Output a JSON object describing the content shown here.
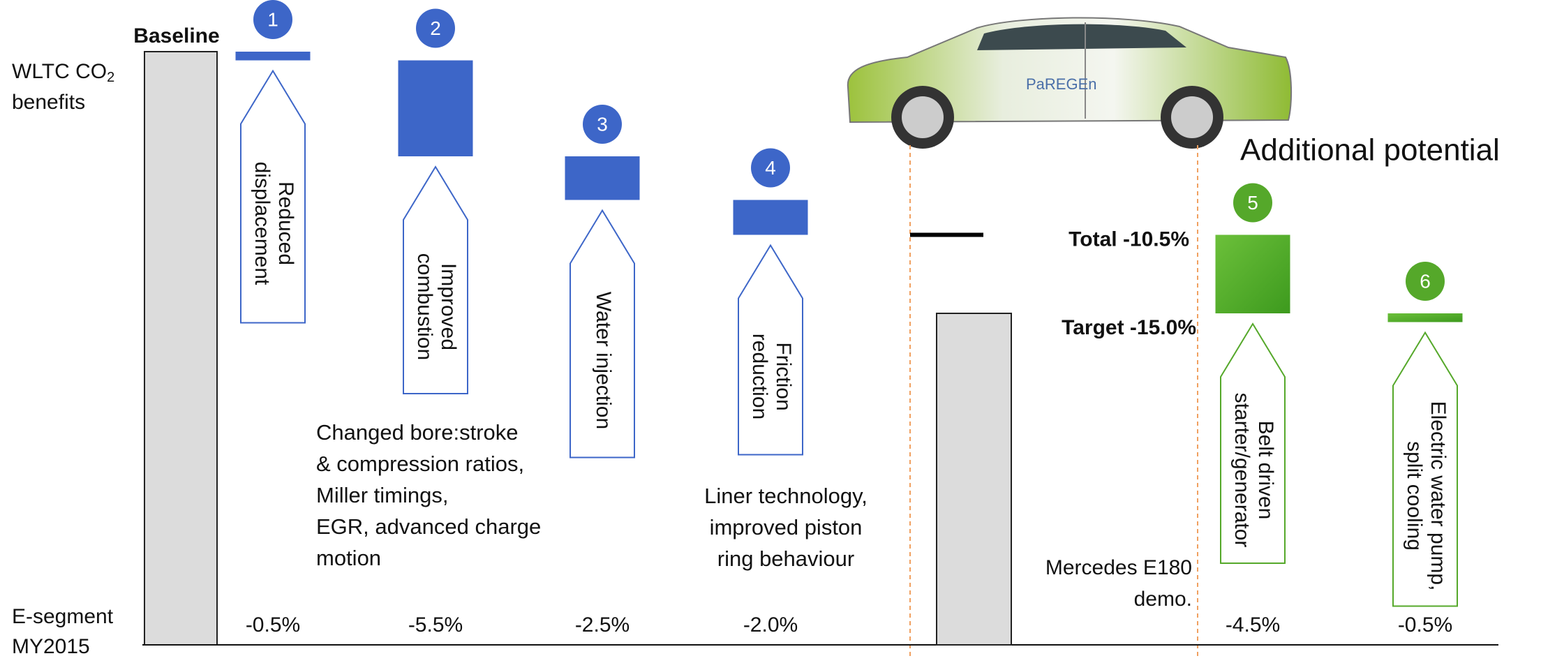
{
  "chart_data": {
    "type": "waterfall",
    "y_label": {
      "text": "WLTC CO",
      "subscript": "2",
      "line2": "benefits"
    },
    "baseline_label": "Baseline",
    "baseline_category": [
      "E-segment",
      "MY2015"
    ],
    "categories": [
      "1",
      "2",
      "3",
      "4",
      "5",
      "6"
    ],
    "values": [
      -0.5,
      -5.5,
      -2.5,
      -2.0,
      -4.5,
      -0.5
    ],
    "value_labels": [
      "-0.5%",
      "-5.5%",
      "-2.5%",
      "-2.0%",
      "-4.5%",
      "-0.5%"
    ],
    "step_labels": [
      [
        "Reduced",
        "displacement"
      ],
      [
        "Improved",
        "combustion"
      ],
      [
        "Water injection"
      ],
      [
        "Friction",
        "reduction"
      ],
      [
        "Belt driven",
        "starter/generator"
      ],
      [
        "Electric water pump,",
        "split cooling"
      ]
    ],
    "colors": [
      "#3d66c8",
      "#3d66c8",
      "#3d66c8",
      "#3d66c8",
      "#55a82a",
      "#55a82a"
    ],
    "notes": [
      null,
      [
        "Changed bore:stroke",
        "& compression ratios,",
        "Miller timings,",
        "EGR, advanced charge",
        "motion"
      ],
      null,
      [
        "Liner technology,",
        "improved piston",
        "ring behaviour"
      ],
      null,
      null
    ],
    "total": {
      "label": "Total -10.5%",
      "value": -10.5
    },
    "target": {
      "label": "Target -15.0%",
      "value": -15.0
    },
    "demo_label": [
      "Mercedes E180",
      "demo."
    ],
    "additional_label": "Additional potential",
    "car_logo": "PaREGEn"
  }
}
